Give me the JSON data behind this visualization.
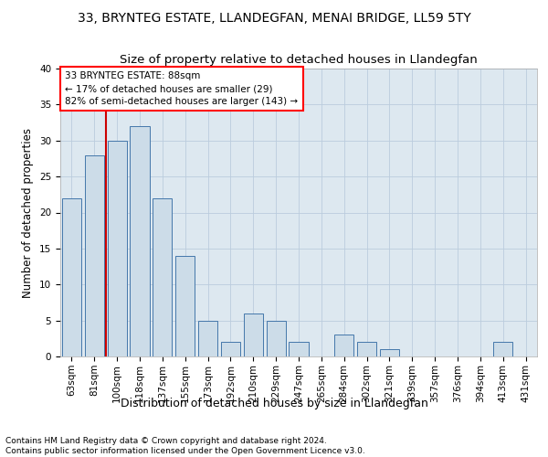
{
  "title": "33, BRYNTEG ESTATE, LLANDEGFAN, MENAI BRIDGE, LL59 5TY",
  "subtitle": "Size of property relative to detached houses in Llandegfan",
  "xlabel": "Distribution of detached houses by size in Llandegfan",
  "ylabel": "Number of detached properties",
  "categories": [
    "63sqm",
    "81sqm",
    "100sqm",
    "118sqm",
    "137sqm",
    "155sqm",
    "173sqm",
    "192sqm",
    "210sqm",
    "229sqm",
    "247sqm",
    "265sqm",
    "284sqm",
    "302sqm",
    "321sqm",
    "339sqm",
    "357sqm",
    "376sqm",
    "394sqm",
    "413sqm",
    "431sqm"
  ],
  "values": [
    22,
    28,
    30,
    32,
    22,
    14,
    5,
    2,
    6,
    5,
    2,
    0,
    3,
    2,
    1,
    0,
    0,
    0,
    0,
    2,
    0
  ],
  "bar_color": "#ccdce8",
  "bar_edge_color": "#4477aa",
  "vline_x_index": 1.5,
  "vline_color": "#cc0000",
  "annotation_box_text": "33 BRYNTEG ESTATE: 88sqm\n← 17% of detached houses are smaller (29)\n82% of semi-detached houses are larger (143) →",
  "ylim": [
    0,
    40
  ],
  "yticks": [
    0,
    5,
    10,
    15,
    20,
    25,
    30,
    35,
    40
  ],
  "grid_color": "#bbccdd",
  "background_color": "#dde8f0",
  "footer_text": "Contains HM Land Registry data © Crown copyright and database right 2024.\nContains public sector information licensed under the Open Government Licence v3.0.",
  "title_fontsize": 10,
  "subtitle_fontsize": 9.5,
  "xlabel_fontsize": 9,
  "ylabel_fontsize": 8.5,
  "tick_fontsize": 7.5,
  "footer_fontsize": 6.5
}
